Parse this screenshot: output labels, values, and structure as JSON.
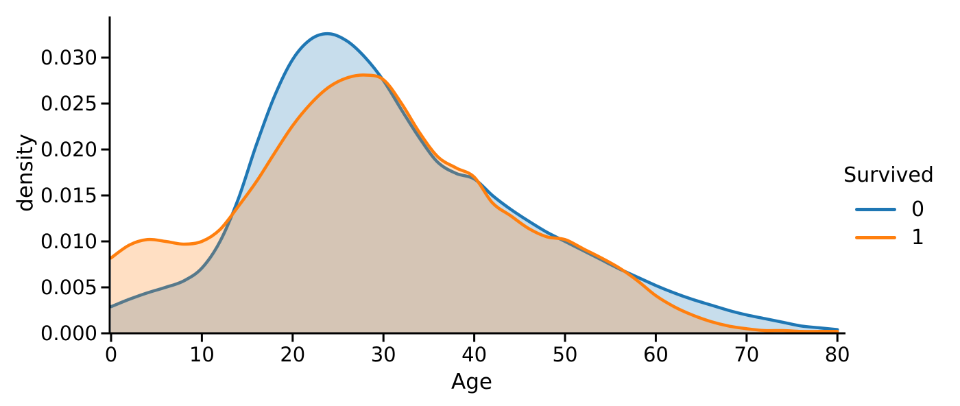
{
  "figure": {
    "background": "#ffffff",
    "text_color": "#000000",
    "axis_color": "#000000"
  },
  "chart_data": {
    "type": "area",
    "kind": "kde-density",
    "title": "",
    "xlabel": "Age",
    "ylabel": "density",
    "xlim": [
      0,
      80
    ],
    "ylim": [
      0,
      0.0344
    ],
    "grid": false,
    "xticks": [
      0,
      10,
      20,
      30,
      40,
      50,
      60,
      70,
      80
    ],
    "xtick_labels": [
      "0",
      "10",
      "20",
      "30",
      "40",
      "50",
      "60",
      "70",
      "80"
    ],
    "yticks": [
      0,
      0.005,
      0.01,
      0.015,
      0.02,
      0.025,
      0.03
    ],
    "ytick_labels": [
      "0.000",
      "0.005",
      "0.010",
      "0.015",
      "0.020",
      "0.025",
      "0.030"
    ],
    "legend": {
      "title": "Survived",
      "position": "outside-right",
      "entries": [
        {
          "label": "0",
          "color": "#1f77b4"
        },
        {
          "label": "1",
          "color": "#ff7f0e"
        }
      ]
    },
    "fill_opacity": 0.25,
    "line_width": 4.5,
    "x": [
      0,
      2,
      4,
      6,
      8,
      10,
      12,
      14,
      16,
      18,
      20,
      22,
      24,
      26,
      28,
      30,
      32,
      34,
      36,
      38,
      40,
      42,
      44,
      46,
      48,
      50,
      52,
      54,
      56,
      58,
      60,
      62,
      64,
      66,
      68,
      70,
      72,
      74,
      76,
      78,
      80
    ],
    "series": [
      {
        "name": "0",
        "color": "#1f77b4",
        "values": [
          0.0029,
          0.0037,
          0.0044,
          0.005,
          0.0057,
          0.0071,
          0.01,
          0.0146,
          0.0205,
          0.0258,
          0.0298,
          0.032,
          0.0326,
          0.0318,
          0.03,
          0.0275,
          0.0243,
          0.0212,
          0.0186,
          0.0174,
          0.0168,
          0.015,
          0.0135,
          0.0122,
          0.011,
          0.01,
          0.009,
          0.008,
          0.007,
          0.0061,
          0.0052,
          0.0044,
          0.0037,
          0.0031,
          0.0025,
          0.002,
          0.0016,
          0.0012,
          0.0008,
          0.0006,
          0.0004
        ]
      },
      {
        "name": "1",
        "color": "#ff7f0e",
        "values": [
          0.0082,
          0.0096,
          0.0102,
          0.01,
          0.0097,
          0.01,
          0.0113,
          0.0138,
          0.0165,
          0.0196,
          0.0226,
          0.025,
          0.0268,
          0.0278,
          0.0281,
          0.0276,
          0.025,
          0.0218,
          0.0192,
          0.018,
          0.017,
          0.0142,
          0.0128,
          0.0114,
          0.0105,
          0.0102,
          0.0092,
          0.0082,
          0.0071,
          0.0057,
          0.0041,
          0.0029,
          0.002,
          0.0013,
          0.0008,
          0.0005,
          0.0003,
          0.0003,
          0.0002,
          0.0002,
          0.0002
        ]
      }
    ]
  }
}
